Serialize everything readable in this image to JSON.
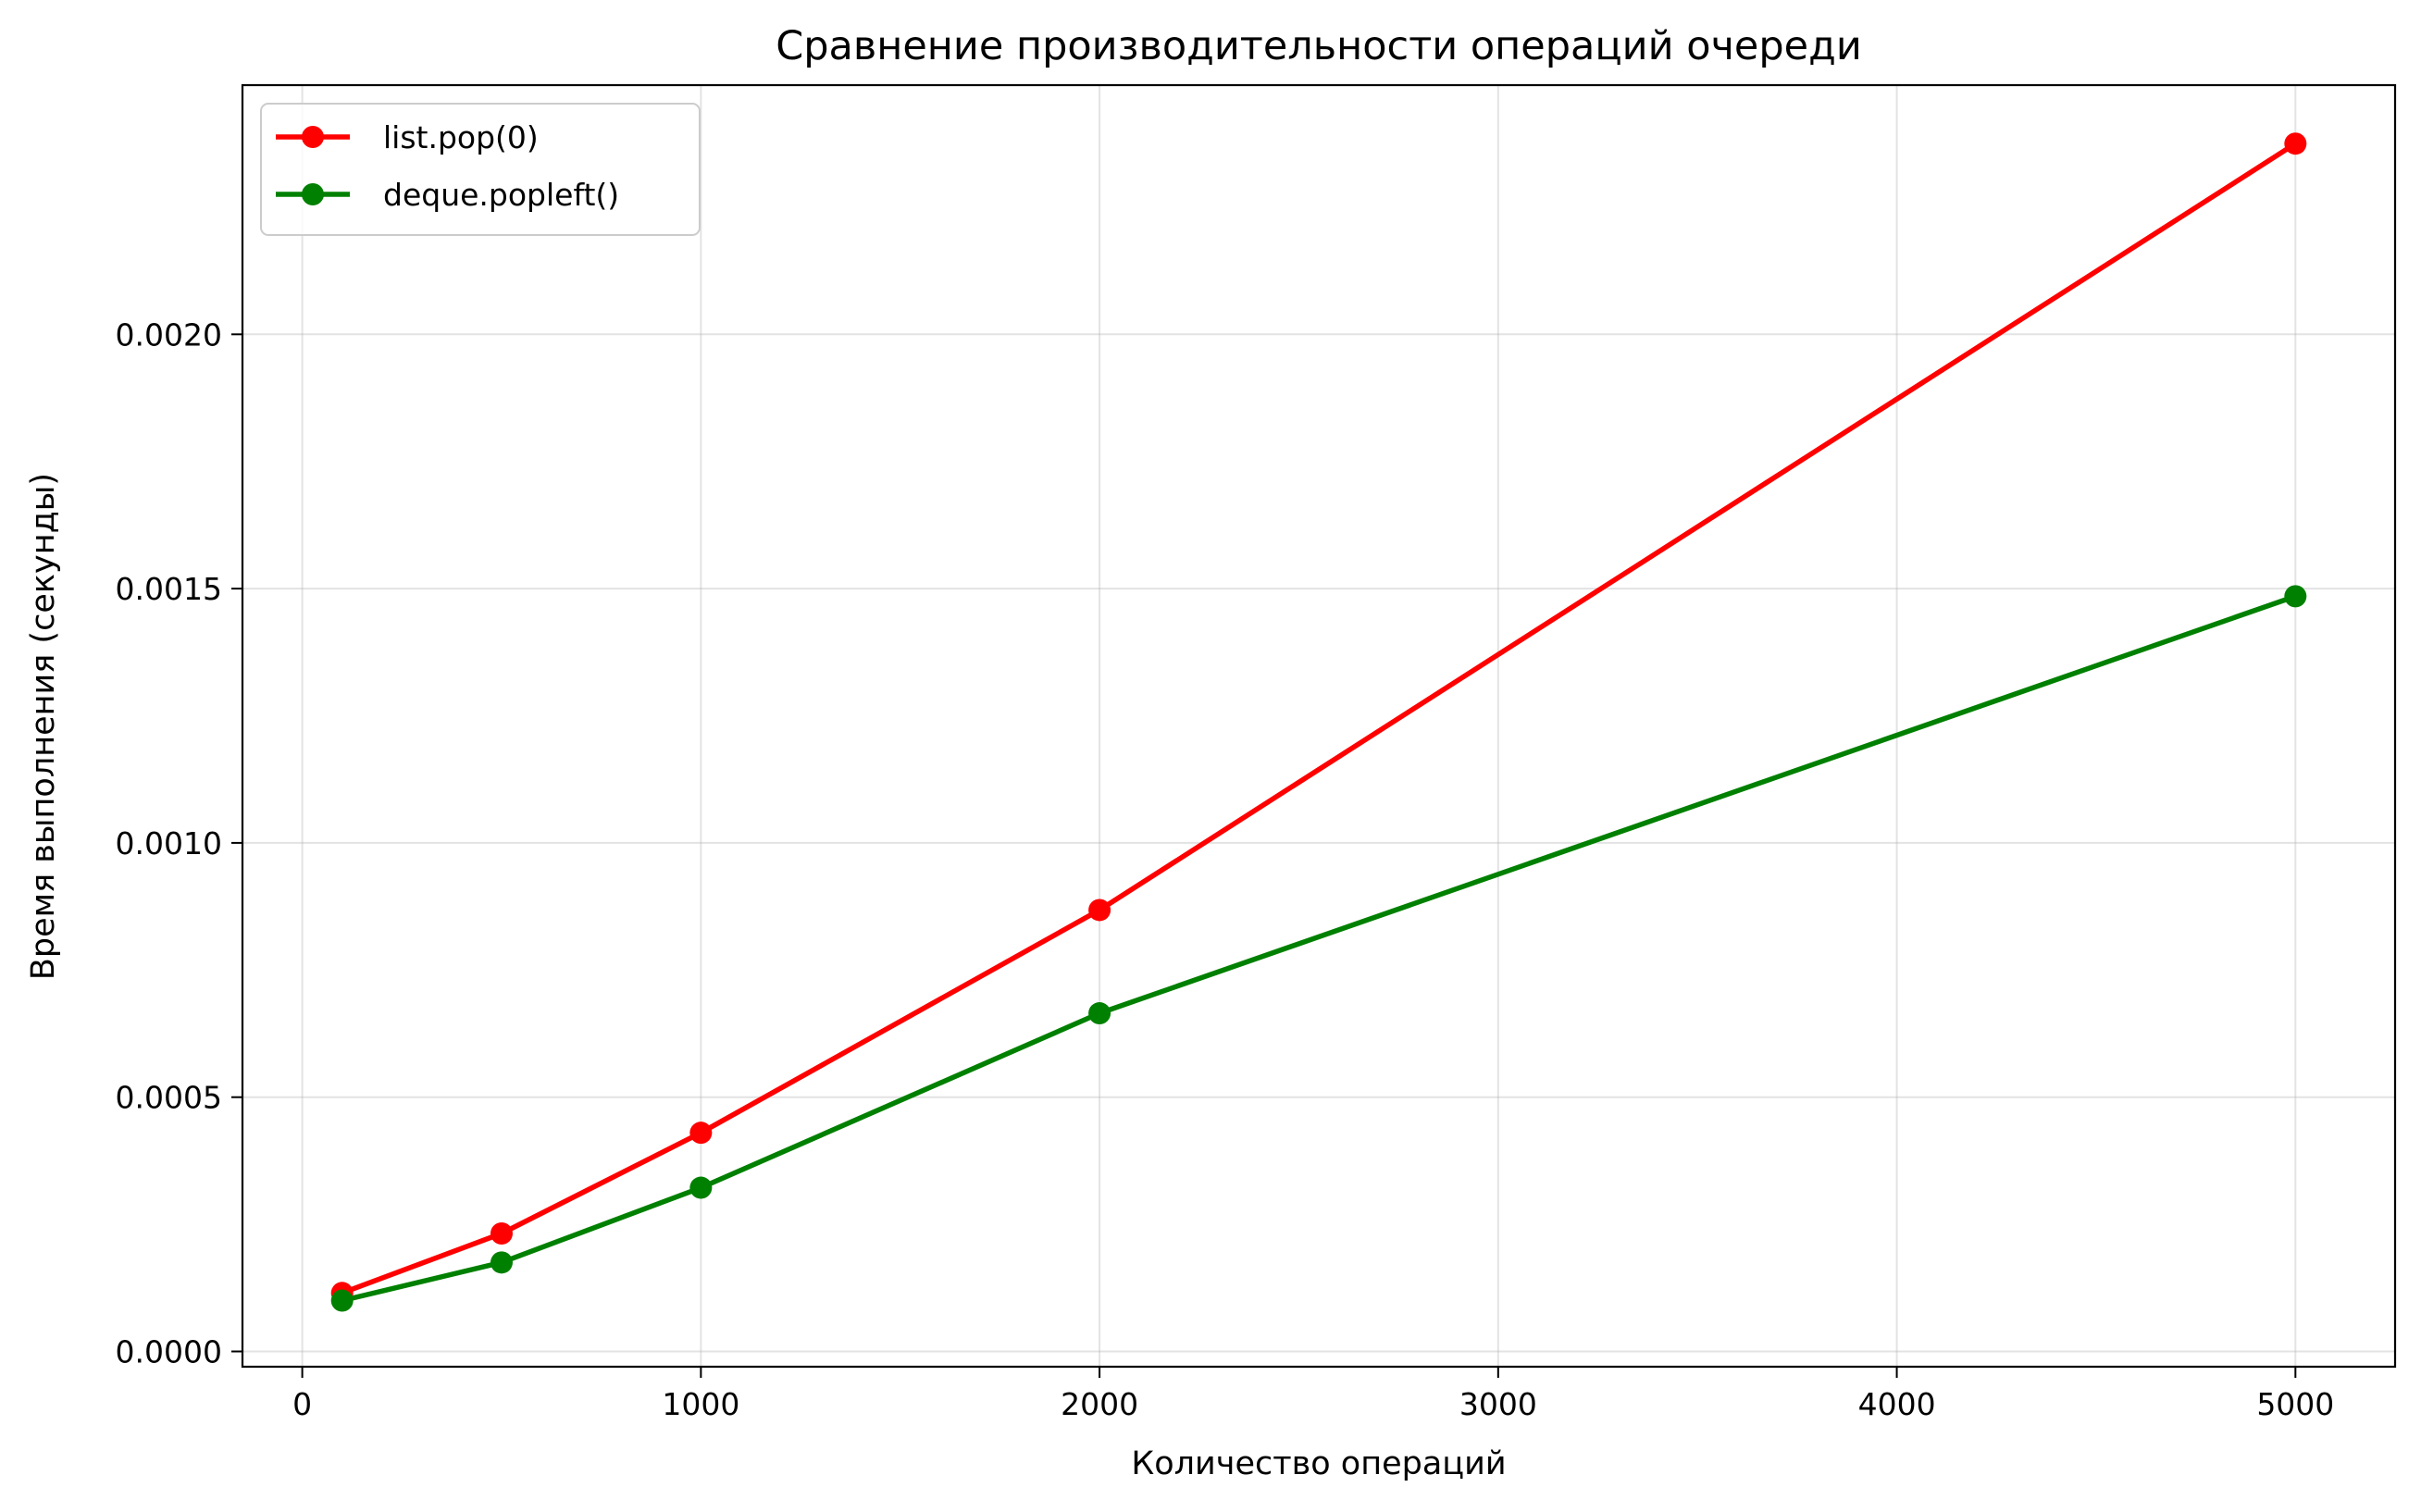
{
  "chart_data": {
    "type": "line",
    "title": "Сравнение производительности операций очереди",
    "xlabel": "Количество операций",
    "ylabel": "Время выполнения (секунды)",
    "xlim": [
      -150,
      5250
    ],
    "ylim": [
      -3e-05,
      0.00249
    ],
    "xticks": [
      0,
      1000,
      2000,
      3000,
      4000,
      5000
    ],
    "xtick_labels": [
      "0",
      "1000",
      "2000",
      "3000",
      "4000",
      "5000"
    ],
    "yticks": [
      0,
      0.0005,
      0.001,
      0.0015,
      0.002
    ],
    "ytick_labels": [
      "0.0000",
      "0.0005",
      "0.0010",
      "0.0015",
      "0.0020"
    ],
    "grid": true,
    "legend_position": "top-left",
    "x": [
      100,
      500,
      1000,
      2000,
      5000
    ],
    "series": [
      {
        "name": "list.pop(0)",
        "color": "#ff0000",
        "values": [
          0.000115,
          0.000232,
          0.00043,
          0.000868,
          0.002375
        ]
      },
      {
        "name": "deque.popleft()",
        "color": "#008000",
        "values": [
          0.0001,
          0.000175,
          0.000322,
          0.000665,
          0.001485
        ]
      }
    ]
  }
}
